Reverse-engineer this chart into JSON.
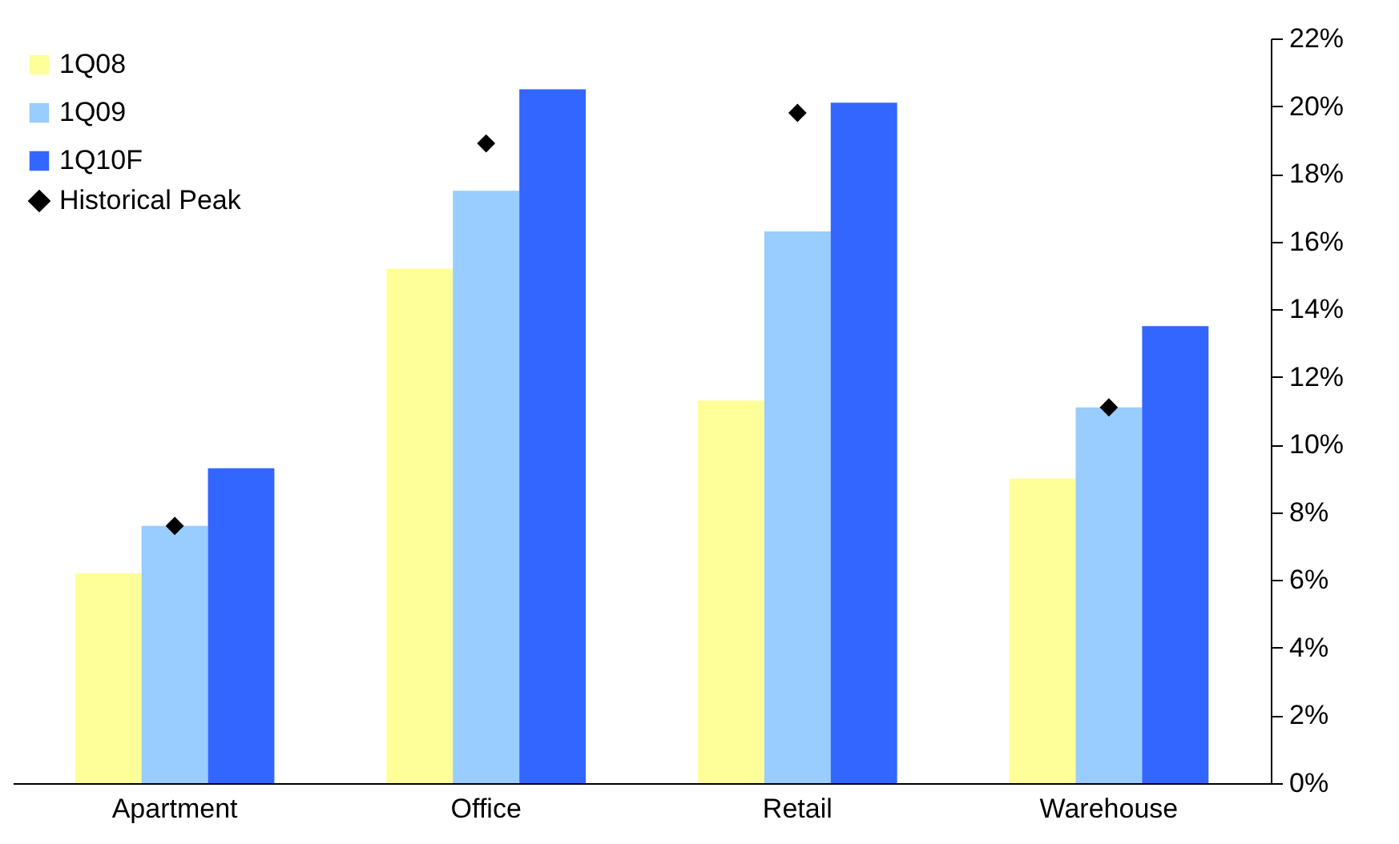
{
  "chart_data": {
    "type": "bar",
    "categories": [
      "Apartment",
      "Office",
      "Retail",
      "Warehouse"
    ],
    "series": [
      {
        "name": "1Q08",
        "color": "#ffff99",
        "values": [
          6.2,
          15.2,
          11.3,
          9.0
        ]
      },
      {
        "name": "1Q09",
        "color": "#99ccff",
        "values": [
          7.6,
          17.5,
          16.3,
          11.1
        ]
      },
      {
        "name": "1Q10F",
        "color": "#3366ff",
        "values": [
          9.3,
          20.5,
          20.1,
          13.5
        ]
      },
      {
        "name": "Historical Peak",
        "type": "scatter",
        "marker": "diamond",
        "color": "#000000",
        "values": [
          7.6,
          18.9,
          19.8,
          11.1
        ]
      }
    ],
    "ylim": [
      0,
      22
    ],
    "yticks": [
      {
        "value": 0,
        "label": "0%"
      },
      {
        "value": 2,
        "label": "2%"
      },
      {
        "value": 4,
        "label": "4%"
      },
      {
        "value": 6,
        "label": "6%"
      },
      {
        "value": 8,
        "label": "8%"
      },
      {
        "value": 10,
        "label": "10%"
      },
      {
        "value": 12,
        "label": "12%"
      },
      {
        "value": 14,
        "label": "14%"
      },
      {
        "value": 16,
        "label": "16%"
      },
      {
        "value": 18,
        "label": "18%"
      },
      {
        "value": 20,
        "label": "20%"
      },
      {
        "value": 22,
        "label": "22%"
      }
    ],
    "grid": false,
    "legend": "top left"
  }
}
